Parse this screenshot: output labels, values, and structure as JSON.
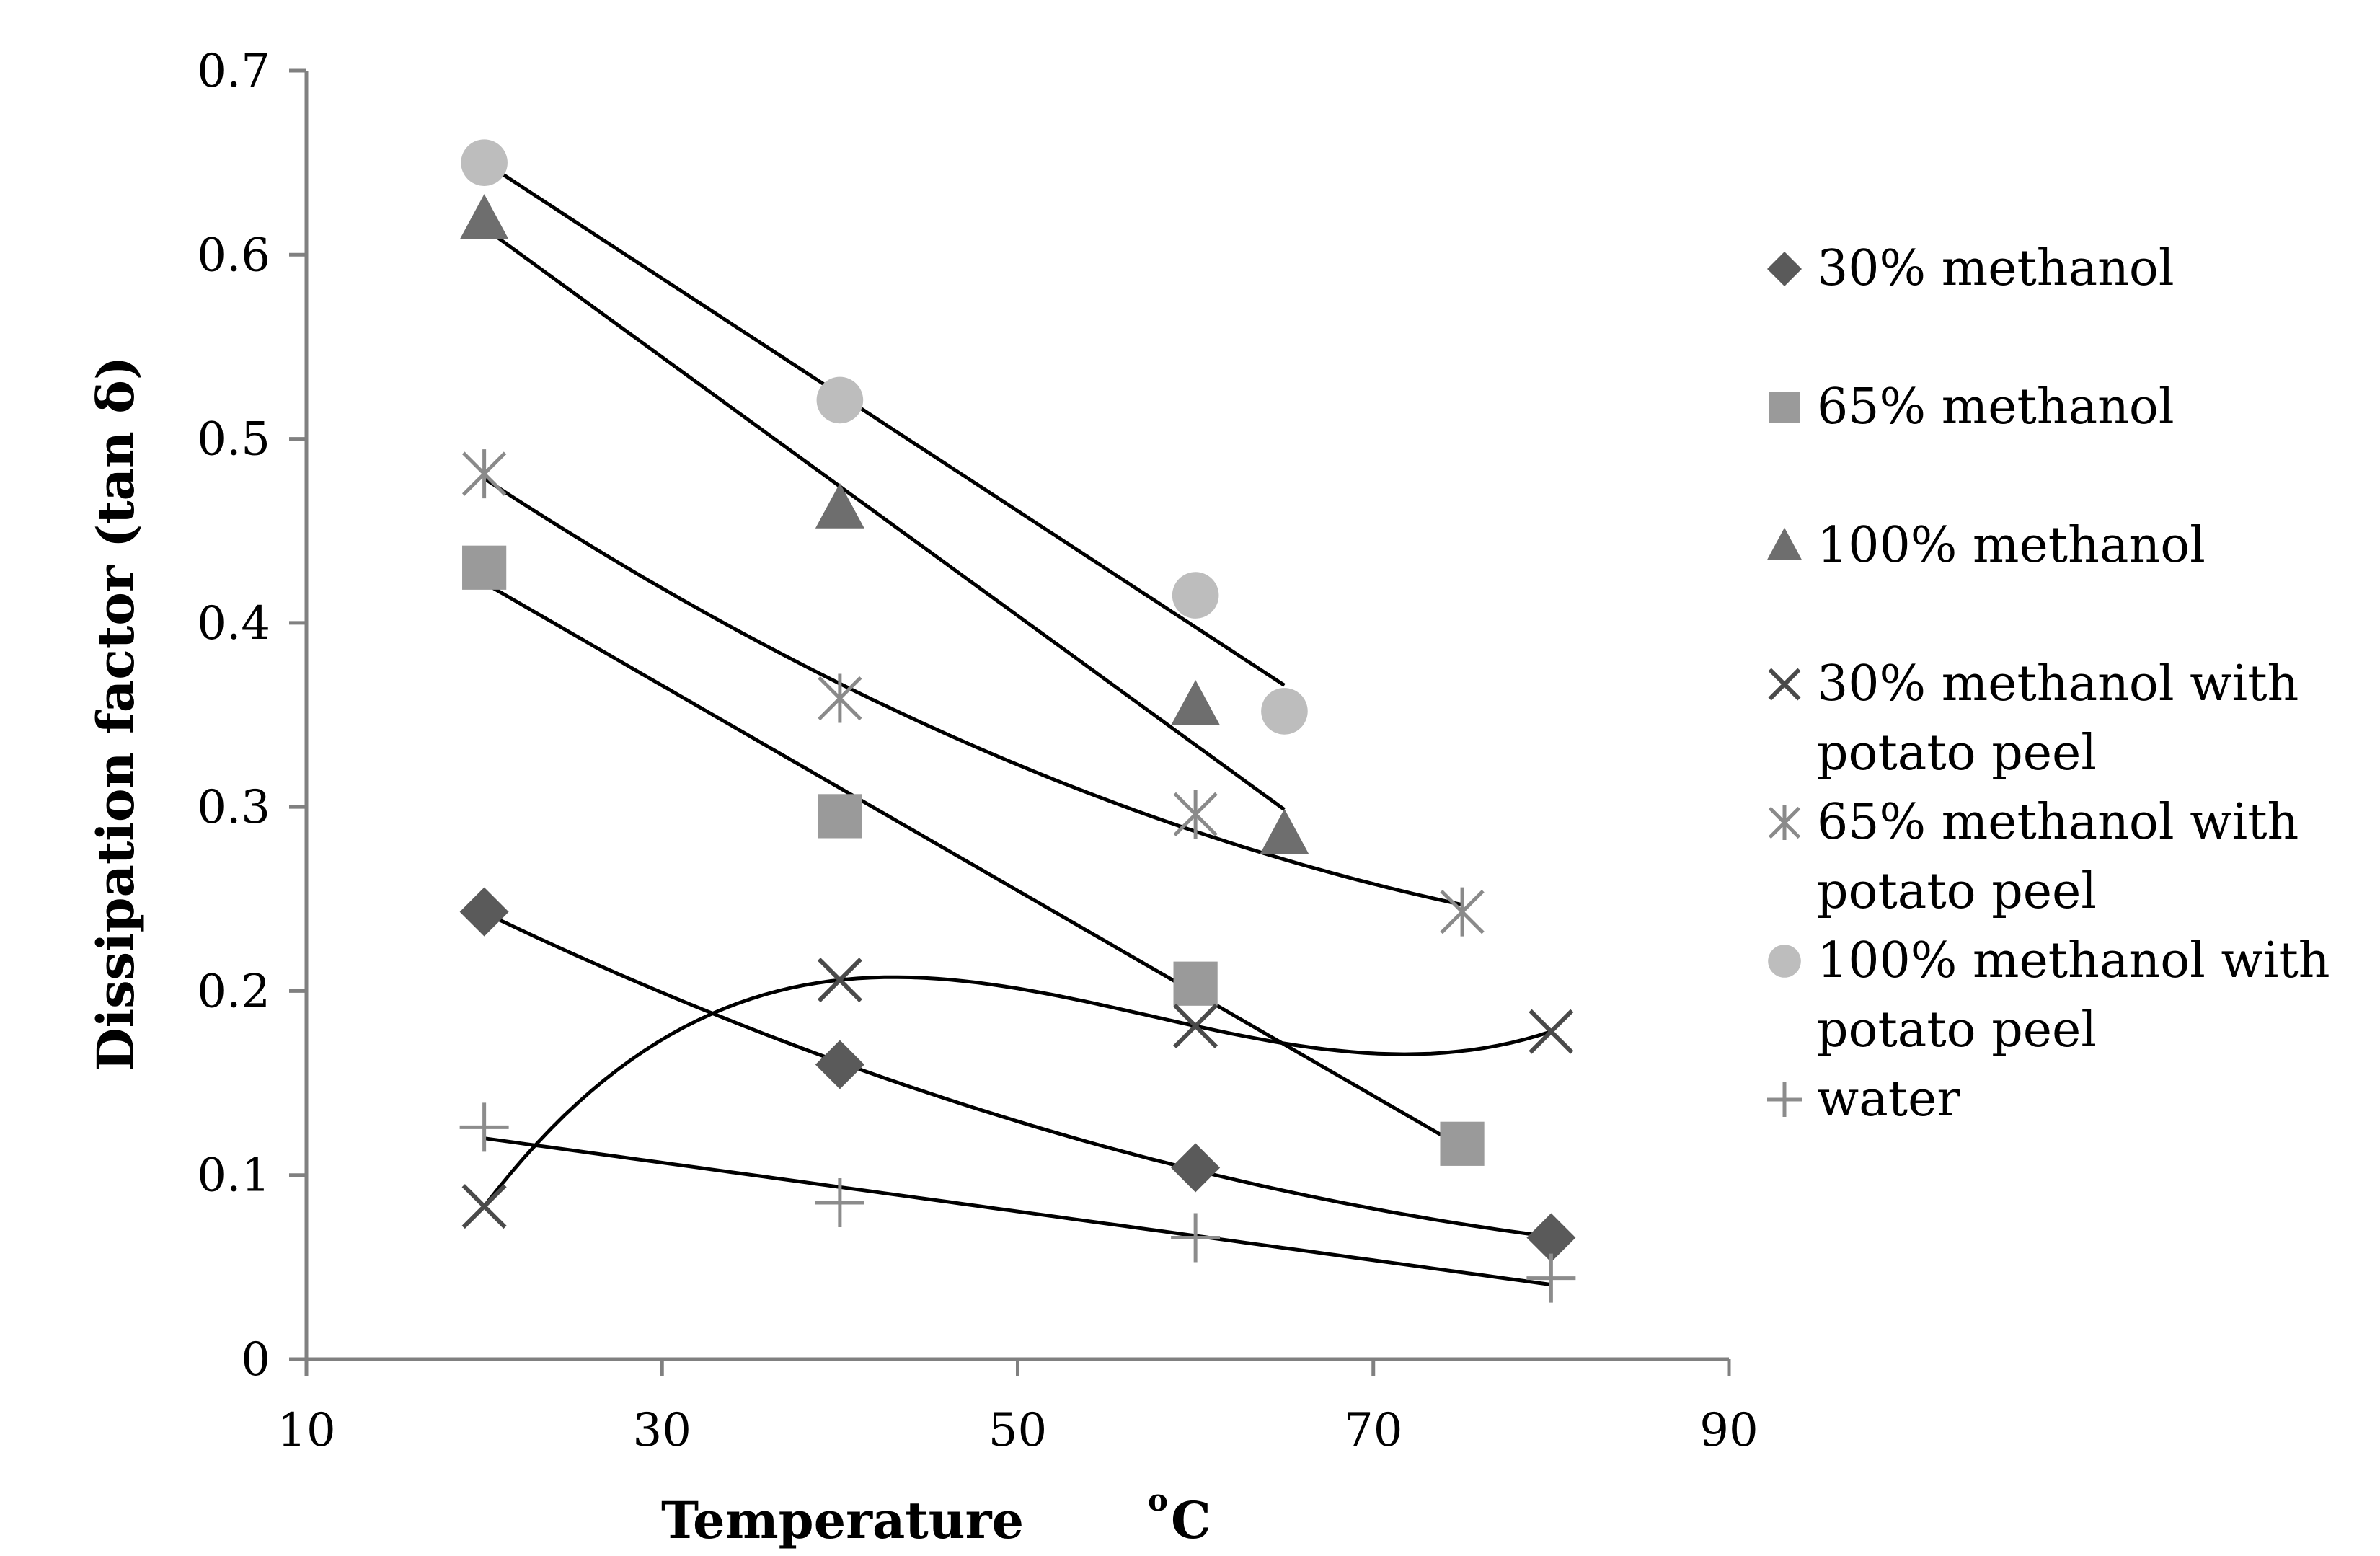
{
  "chart_data": {
    "type": "scatter",
    "title": "",
    "xlabel": "Temperature",
    "xlabel_unit_sup": "o",
    "xlabel_unit": "C",
    "ylabel": "Dissipation factor (tan δ)",
    "xlim": [
      10,
      90
    ],
    "ylim": [
      0,
      0.7
    ],
    "xticks": [
      10,
      30,
      50,
      70,
      90
    ],
    "xtick_labels": [
      "10",
      "30",
      "50",
      "70",
      "90"
    ],
    "yticks": [
      0,
      0.1,
      0.2,
      0.3,
      0.4,
      0.5,
      0.6,
      0.7
    ],
    "ytick_labels": [
      "0",
      "0.1",
      "0.2",
      "0.3",
      "0.4",
      "0.5",
      "0.6",
      "0.7"
    ],
    "grid": false,
    "legend_position": "right",
    "series": [
      {
        "name": "30% methanol",
        "legend_lines": [
          "30% methanol"
        ],
        "marker": "diamond",
        "color": "#5a5a5a",
        "x": [
          20,
          40,
          60,
          80
        ],
        "y": [
          0.243,
          0.16,
          0.104,
          0.066
        ],
        "trendline": "poly2"
      },
      {
        "name": "65% methanol",
        "legend_lines": [
          "65% methanol"
        ],
        "marker": "square",
        "color": "#9a9a9a",
        "x": [
          20,
          40,
          60,
          75
        ],
        "y": [
          0.43,
          0.295,
          0.204,
          0.117
        ],
        "trendline": "linear"
      },
      {
        "name": "100% methanol",
        "legend_lines": [
          "100% methanol"
        ],
        "marker": "triangle",
        "color": "#6e6e6e",
        "x": [
          20,
          40,
          60,
          65
        ],
        "y": [
          0.619,
          0.462,
          0.355,
          0.285
        ],
        "trendline": "linear"
      },
      {
        "name": "30% methanol with potato peel",
        "legend_lines": [
          "30% methanol with",
          "potato peel"
        ],
        "marker": "x",
        "color": "#4a4a4a",
        "x": [
          20,
          40,
          60,
          80
        ],
        "y": [
          0.083,
          0.206,
          0.181,
          0.178
        ],
        "trendline": "poly3"
      },
      {
        "name": "65% methanol with potato peel",
        "legend_lines": [
          "65% methanol with",
          "potato peel"
        ],
        "marker": "asterisk",
        "color": "#8a8a8a",
        "x": [
          20,
          40,
          60,
          75
        ],
        "y": [
          0.481,
          0.359,
          0.296,
          0.243
        ],
        "trendline": "poly2"
      },
      {
        "name": "100% methanol with potato peel",
        "legend_lines": [
          "100% methanol with",
          "potato peel"
        ],
        "marker": "circle",
        "color": "#bdbdbd",
        "x": [
          20,
          40,
          60,
          65
        ],
        "y": [
          0.65,
          0.521,
          0.415,
          0.352
        ],
        "trendline": "linear"
      },
      {
        "name": "water",
        "legend_lines": [
          "water"
        ],
        "marker": "plus",
        "color": "#8c8c8c",
        "x": [
          20,
          40,
          60,
          80
        ],
        "y": [
          0.126,
          0.085,
          0.066,
          0.044
        ],
        "trendline": "linear"
      }
    ]
  }
}
